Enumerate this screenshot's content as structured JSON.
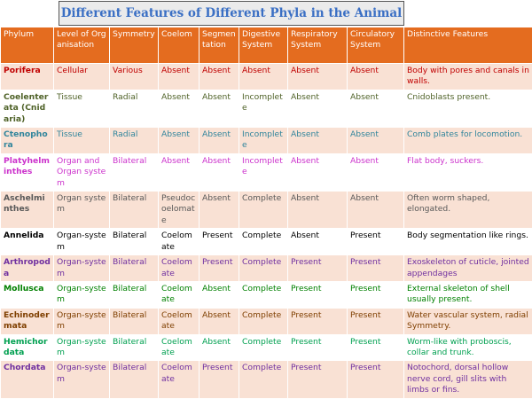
{
  "title": "Different Features of Different Phyla in the Animal",
  "columns": [
    "Phylum",
    "Level of Organisation",
    "Symmetry",
    "Coelom",
    "Segmentation",
    "Digestive System",
    "Respiratory System",
    "Circulatory System",
    "Distinctive Features"
  ],
  "rows": [
    {
      "color": "#c00000",
      "cells": [
        "Porifera",
        "Cellular",
        "Various",
        "Absent",
        "Absent",
        "Absent",
        "Absent",
        "Absent",
        "Body with pores and canals in walls."
      ]
    },
    {
      "color": "#4f6228",
      "cells": [
        "Coelenterata (Cnidaria)",
        "Tissue",
        "Radial",
        "Absent",
        "Absent",
        "Incomplete",
        "Absent",
        "Absent",
        "Cnidoblasts present."
      ]
    },
    {
      "color": "#31859c",
      "cells": [
        "Ctenophora",
        "Tissue",
        "Radial",
        "Absent",
        "Absent",
        "Incomplete",
        "Absent",
        "Absent",
        "Comb plates for locomotion."
      ]
    },
    {
      "color": "#cc33cc",
      "cells": [
        "Platyhelminthes",
        "Organ and Organ system",
        "Bilateral",
        "Absent",
        "Absent",
        "Incomplete",
        "Absent",
        "Absent",
        "Flat body, suckers."
      ]
    },
    {
      "color": "#595959",
      "cells": [
        "Aschelminthes",
        "Organ system",
        "Bilateral",
        "Pseudocoelomate",
        "Absent",
        "Complete",
        "Absent",
        "Absent",
        "Often worm shaped, elongated."
      ]
    },
    {
      "color": "#000000",
      "cells": [
        "Annelida",
        "Organ-system",
        "Bilateral",
        "Coelomate",
        "Present",
        "Complete",
        "Absent",
        "Present",
        "Body segmentation like rings."
      ]
    },
    {
      "color": "#7030a0",
      "cells": [
        "Arthropoda",
        "Organ-system",
        "Bilateral",
        "Coelomate",
        "Present",
        "Complete",
        "Present",
        "Present",
        "Exoskeleton of cuticle, jointed appendages"
      ]
    },
    {
      "color": "#008000",
      "cells": [
        "Mollusca",
        "Organ-system",
        "Bilateral",
        "Coelomate",
        "Absent",
        "Complete",
        "Present",
        "Present",
        "External skeleton of shell usually present."
      ]
    },
    {
      "color": "#7f3f00",
      "cells": [
        "Echinodermata",
        "Organ-system",
        "Bilateral",
        "Coelomate",
        "Absent",
        "Complete",
        "Present",
        "Present",
        "Water vascular system, radial Symmetry."
      ]
    },
    {
      "color": "#00a050",
      "cells": [
        "Hemichordata",
        "Organ-system",
        "Bilateral",
        "Coelomate",
        "Absent",
        "Complete",
        "Present",
        "Present",
        "Worm-like with proboscis, collar and trunk."
      ]
    },
    {
      "color": "#7030a0",
      "cells": [
        "Chordata",
        "Organ-system",
        "Bilateral",
        "Coelomate",
        "Present",
        "Complete",
        "Present",
        "Present",
        "Notochord, dorsal hollow nerve cord, gill slits with limbs or fins."
      ]
    }
  ]
}
